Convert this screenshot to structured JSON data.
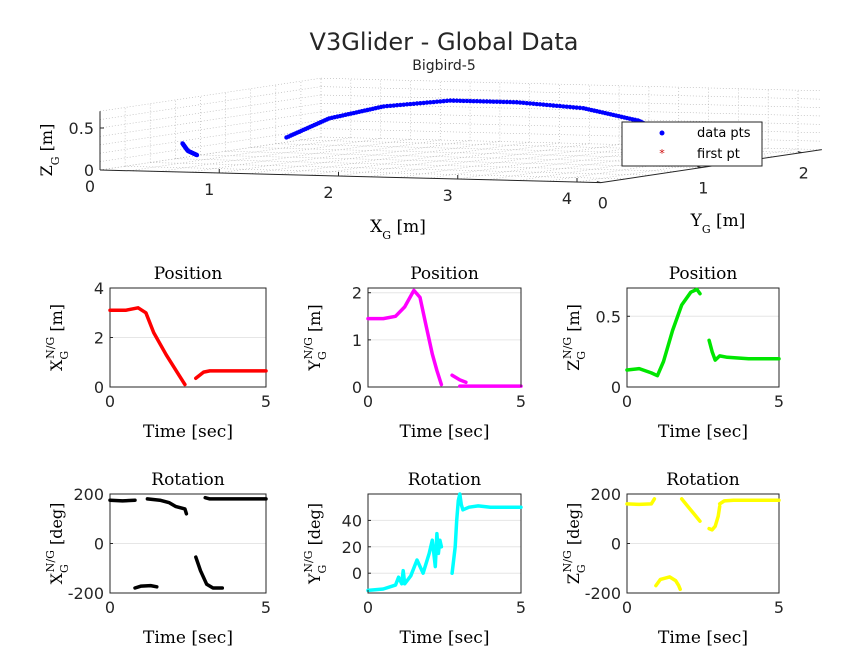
{
  "figure": {
    "title": "V3Glider - Global Data",
    "subtitle": "Bigbird-5"
  },
  "chart_data": [
    {
      "id": "3d",
      "type": "scatter3d",
      "xlabel": "X_G [m]",
      "ylabel": "Y_G [m]",
      "zlabel": "Z_G [m]",
      "xlim": [
        0,
        4.2
      ],
      "ylim": [
        0,
        2.2
      ],
      "zlim": [
        0,
        0.7
      ],
      "xticks": [
        0,
        1,
        2,
        3,
        4
      ],
      "yticks": [
        0,
        1,
        2
      ],
      "zticks": [
        0,
        0.5
      ],
      "grid": true,
      "legend": {
        "position": "right",
        "entries": [
          "data pts",
          "first pt"
        ]
      },
      "series": [
        {
          "name": "data pts",
          "color": "#0000ff",
          "x": [
            0.3,
            0.7,
            1.2,
            1.8,
            2.4,
            3.0,
            3.5,
            3.9,
            4.1,
            4.2,
            0.65,
            0.72,
            0.8
          ],
          "y": [
            1.5,
            1.45,
            1.4,
            1.35,
            1.3,
            1.25,
            1.2,
            1.0,
            0.8,
            0.6,
            0.05,
            0.02,
            0.02
          ],
          "z": [
            0.13,
            0.38,
            0.55,
            0.65,
            0.66,
            0.62,
            0.5,
            0.4,
            0.32,
            0.28,
            0.33,
            0.25,
            0.2
          ]
        },
        {
          "name": "first pt",
          "color": "#cc0000",
          "x": [],
          "y": [],
          "z": []
        }
      ]
    },
    {
      "id": "pos_x",
      "type": "line",
      "title": "Position",
      "xlabel": "Time [sec]",
      "ylabel": "X_G^{N/G} [m]",
      "color": "#ff0000",
      "xlim": [
        0,
        5
      ],
      "ylim": [
        0,
        4
      ],
      "xticks": [
        0,
        5
      ],
      "yticks": [
        0,
        2,
        4
      ],
      "grid": true,
      "segments": [
        {
          "x": [
            0,
            0.5,
            0.9,
            1.15,
            1.4,
            1.8,
            2.2,
            2.4
          ],
          "y": [
            3.1,
            3.1,
            3.2,
            3.0,
            2.2,
            1.3,
            0.5,
            0.1
          ]
        },
        {
          "x": [
            2.75,
            3.0,
            3.2,
            3.5,
            4.0,
            5.0
          ],
          "y": [
            0.35,
            0.6,
            0.65,
            0.65,
            0.65,
            0.65
          ]
        }
      ]
    },
    {
      "id": "pos_y",
      "type": "line",
      "title": "Position",
      "xlabel": "Time [sec]",
      "ylabel": "Y_G^{N/G} [m]",
      "color": "#ff00ff",
      "xlim": [
        0,
        5
      ],
      "ylim": [
        0,
        2.1
      ],
      "xticks": [
        0,
        5
      ],
      "yticks": [
        0,
        1,
        2
      ],
      "grid": true,
      "segments": [
        {
          "x": [
            0,
            0.5,
            0.9,
            1.2,
            1.5,
            1.7,
            1.9,
            2.1,
            2.25,
            2.4
          ],
          "y": [
            1.45,
            1.45,
            1.5,
            1.7,
            2.05,
            1.9,
            1.3,
            0.7,
            0.35,
            0.05
          ]
        },
        {
          "x": [
            2.75,
            3.0,
            3.2
          ],
          "y": [
            0.25,
            0.15,
            0.1
          ]
        },
        {
          "x": [
            3.0,
            3.5,
            4.0,
            5.0
          ],
          "y": [
            0.02,
            0.02,
            0.02,
            0.02
          ]
        }
      ]
    },
    {
      "id": "pos_z",
      "type": "line",
      "title": "Position",
      "xlabel": "Time [sec]",
      "ylabel": "Z_G^{N/G} [m]",
      "color": "#00e600",
      "xlim": [
        0,
        5
      ],
      "ylim": [
        0,
        0.7
      ],
      "xticks": [
        0,
        5
      ],
      "yticks": [
        0,
        0.5
      ],
      "grid": true,
      "segments": [
        {
          "x": [
            0,
            0.4,
            0.8,
            1.0,
            1.2,
            1.5,
            1.8,
            2.1,
            2.3,
            2.4
          ],
          "y": [
            0.12,
            0.13,
            0.1,
            0.08,
            0.18,
            0.4,
            0.58,
            0.67,
            0.69,
            0.66
          ]
        },
        {
          "x": [
            2.7,
            2.8,
            2.9,
            3.05,
            3.3,
            4.0,
            5.0
          ],
          "y": [
            0.33,
            0.25,
            0.19,
            0.22,
            0.21,
            0.2,
            0.2
          ]
        }
      ]
    },
    {
      "id": "rot_x",
      "type": "line",
      "title": "Rotation",
      "xlabel": "Time [sec]",
      "ylabel": "X_G^{N/G} [deg]",
      "color": "#000000",
      "xlim": [
        0,
        5
      ],
      "ylim": [
        -200,
        200
      ],
      "xticks": [
        0,
        5
      ],
      "yticks": [
        -200,
        0,
        200
      ],
      "grid": true,
      "segments": [
        {
          "x": [
            0,
            0.4,
            0.8
          ],
          "y": [
            175,
            172,
            175
          ]
        },
        {
          "x": [
            1.2,
            1.6,
            1.9,
            2.1,
            2.4,
            2.45
          ],
          "y": [
            180,
            175,
            165,
            150,
            140,
            120
          ]
        },
        {
          "x": [
            0.8,
            1.0,
            1.3,
            1.5
          ],
          "y": [
            -180,
            -172,
            -170,
            -175
          ]
        },
        {
          "x": [
            2.75,
            2.9,
            3.1,
            3.3,
            3.6
          ],
          "y": [
            -55,
            -110,
            -165,
            -180,
            -180
          ]
        },
        {
          "x": [
            3.05,
            3.2,
            3.5,
            4.0,
            5.0
          ],
          "y": [
            185,
            180,
            180,
            180,
            180
          ]
        }
      ]
    },
    {
      "id": "rot_y",
      "type": "line",
      "title": "Rotation",
      "xlabel": "Time [sec]",
      "ylabel": "Y_G^{N/G} [deg]",
      "color": "#00ffff",
      "xlim": [
        0,
        5
      ],
      "ylim": [
        -15,
        60
      ],
      "xticks": [
        0,
        5
      ],
      "yticks": [
        0,
        20,
        40
      ],
      "grid": true,
      "segments": [
        {
          "x": [
            0,
            0.5,
            0.9,
            1.0,
            1.1,
            1.15,
            1.2,
            1.4,
            1.6,
            1.8,
            2.0,
            2.1,
            2.2,
            2.25,
            2.3,
            2.35,
            2.4
          ],
          "y": [
            -13,
            -12,
            -9,
            -3,
            -8,
            2,
            -8,
            -2,
            10,
            0,
            15,
            25,
            5,
            30,
            15,
            25,
            20
          ]
        },
        {
          "x": [
            2.75,
            2.85,
            2.9,
            2.95,
            3.0,
            3.05,
            3.1,
            3.3,
            3.6,
            4.0,
            5.0
          ],
          "y": [
            0,
            20,
            40,
            55,
            60,
            52,
            48,
            50,
            51,
            50,
            50
          ]
        }
      ]
    },
    {
      "id": "rot_z",
      "type": "line",
      "title": "Rotation",
      "xlabel": "Time [sec]",
      "ylabel": "Z_G^{N/G} [deg]",
      "color": "#ffff00",
      "xlim": [
        0,
        5
      ],
      "ylim": [
        -200,
        200
      ],
      "xticks": [
        0,
        5
      ],
      "yticks": [
        -200,
        0,
        200
      ],
      "grid": true,
      "segments": [
        {
          "x": [
            0,
            0.4,
            0.8,
            0.9
          ],
          "y": [
            160,
            158,
            160,
            180
          ]
        },
        {
          "x": [
            1.8,
            2.0,
            2.2,
            2.4
          ],
          "y": [
            180,
            150,
            120,
            90
          ]
        },
        {
          "x": [
            2.7,
            2.8,
            2.9,
            3.0,
            3.05
          ],
          "y": [
            60,
            55,
            70,
            110,
            150
          ]
        },
        {
          "x": [
            3.05,
            3.2,
            3.5,
            4.0,
            5.0
          ],
          "y": [
            160,
            172,
            175,
            175,
            175
          ]
        },
        {
          "x": [
            0.95,
            1.1,
            1.4,
            1.6,
            1.7,
            1.75
          ],
          "y": [
            -170,
            -145,
            -135,
            -150,
            -170,
            -185
          ]
        }
      ]
    }
  ]
}
